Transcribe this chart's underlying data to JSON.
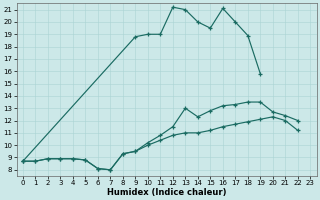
{
  "xlabel": "Humidex (Indice chaleur)",
  "bg_color": "#cce8e8",
  "grid_color": "#aad4d4",
  "line_color": "#1a6b62",
  "xlim": [
    -0.5,
    23.5
  ],
  "ylim": [
    7.5,
    21.5
  ],
  "xticks": [
    0,
    1,
    2,
    3,
    4,
    5,
    6,
    7,
    8,
    9,
    10,
    11,
    12,
    13,
    14,
    15,
    16,
    17,
    18,
    19,
    20,
    21,
    22,
    23
  ],
  "yticks": [
    8,
    9,
    10,
    11,
    12,
    13,
    14,
    15,
    16,
    17,
    18,
    19,
    20,
    21
  ],
  "curve1_x": [
    0,
    9,
    10,
    11,
    12,
    13,
    14,
    15,
    16,
    17,
    18,
    19
  ],
  "curve1_y": [
    8.7,
    18.8,
    19.0,
    19.0,
    21.2,
    21.0,
    20.0,
    19.5,
    21.1,
    20.0,
    18.9,
    15.8
  ],
  "curve2_x": [
    0,
    1,
    2,
    3,
    4,
    5,
    6,
    7,
    8,
    9,
    10,
    11,
    12,
    13,
    14,
    15,
    16,
    17,
    18,
    19,
    20,
    21,
    22
  ],
  "curve2_y": [
    8.7,
    8.7,
    8.9,
    8.9,
    8.9,
    8.8,
    8.1,
    8.0,
    9.3,
    9.5,
    10.2,
    10.8,
    11.5,
    13.0,
    12.3,
    12.8,
    13.2,
    13.3,
    13.5,
    13.5,
    12.7,
    12.4,
    12.0
  ],
  "curve3_x": [
    0,
    1,
    2,
    3,
    4,
    5,
    6,
    7,
    8,
    9,
    10,
    11,
    12,
    13,
    14,
    15,
    16,
    17,
    18,
    19,
    20,
    21,
    22
  ],
  "curve3_y": [
    8.7,
    8.7,
    8.9,
    8.9,
    8.9,
    8.8,
    8.1,
    8.0,
    9.3,
    9.5,
    10.0,
    10.4,
    10.8,
    11.0,
    11.0,
    11.2,
    11.5,
    11.7,
    11.9,
    12.1,
    12.3,
    12.0,
    11.2
  ]
}
